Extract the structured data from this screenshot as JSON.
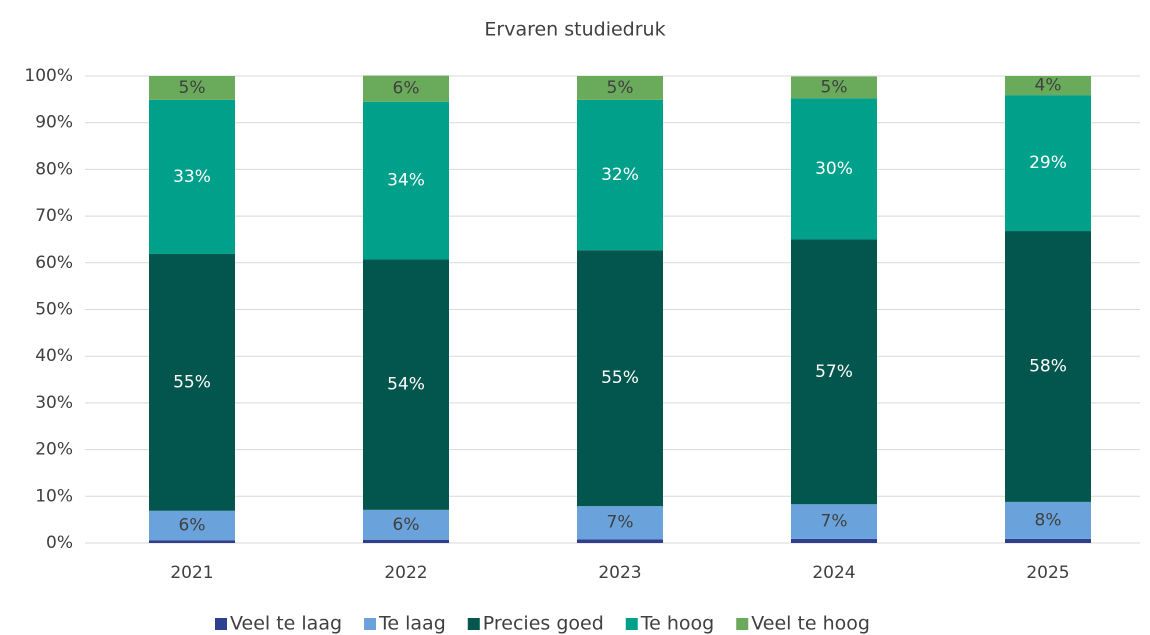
{
  "chart_data": {
    "type": "stacked_bar",
    "title": "Ervaren studiedruk",
    "categories": [
      "2021",
      "2022",
      "2023",
      "2024",
      "2025"
    ],
    "series": [
      {
        "name": "Veel te laag",
        "color": "#2f3f8f",
        "values": [
          0.6,
          0.7,
          0.8,
          0.9,
          0.9
        ]
      },
      {
        "name": "Te laag",
        "color": "#6aa3db",
        "values": [
          6.3,
          6.4,
          7.1,
          7.4,
          7.9
        ],
        "value_labels": [
          "6%",
          "6%",
          "7%",
          "7%",
          "8%"
        ]
      },
      {
        "name": "Precies goed",
        "color": "#03564d",
        "values": [
          55,
          53.6,
          54.8,
          56.7,
          58
        ],
        "value_labels": [
          "55%",
          "54%",
          "55%",
          "57%",
          "58%"
        ]
      },
      {
        "name": "Te hoog",
        "color": "#00a08a",
        "values": [
          33,
          33.8,
          32.2,
          30.2,
          29.1
        ],
        "value_labels": [
          "33%",
          "34%",
          "32%",
          "30%",
          "29%"
        ]
      },
      {
        "name": "Veel te hoog",
        "color": "#6aaa5b",
        "values": [
          5.1,
          5.6,
          5.1,
          4.7,
          4.1
        ],
        "value_labels": [
          "5%",
          "6%",
          "5%",
          "5%",
          "4%"
        ]
      }
    ],
    "ylim": [
      0,
      100
    ],
    "yticks": [
      {
        "value": 0,
        "label": "0%"
      },
      {
        "value": 10,
        "label": "10%"
      },
      {
        "value": 20,
        "label": "20%"
      },
      {
        "value": 30,
        "label": "30%"
      },
      {
        "value": 40,
        "label": "40%"
      },
      {
        "value": 50,
        "label": "50%"
      },
      {
        "value": 60,
        "label": "60%"
      },
      {
        "value": 70,
        "label": "70%"
      },
      {
        "value": 80,
        "label": "80%"
      },
      {
        "value": 90,
        "label": "90%"
      },
      {
        "value": 100,
        "label": "100%"
      }
    ],
    "grid": true,
    "legend": "bottom"
  }
}
